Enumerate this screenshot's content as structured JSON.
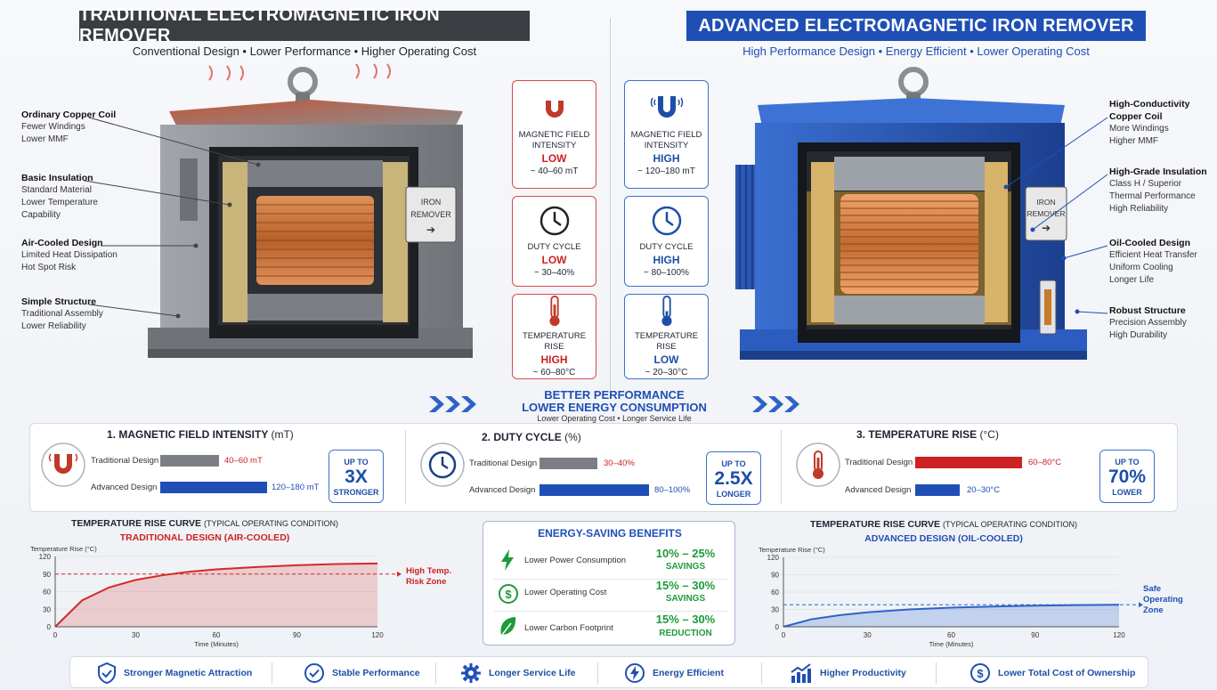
{
  "left": {
    "title": "TRADITIONAL ELECTROMAGNETIC IRON REMOVER",
    "subtitle": "Conventional Design • Lower Performance • Higher Operating Cost",
    "title_color": "#3a3d42",
    "callouts": [
      {
        "head": "Ordinary Copper Coil",
        "lines": [
          "Fewer Windings",
          "Lower MMF"
        ]
      },
      {
        "head": "Basic Insulation",
        "lines": [
          "Standard Material",
          "Lower Temperature",
          "Capability"
        ]
      },
      {
        "head": "Air-Cooled Design",
        "lines": [
          "Limited Heat Dissipation",
          "Hot Spot Risk"
        ]
      },
      {
        "head": "Simple Structure",
        "lines": [
          "Traditional Assembly",
          "Lower Reliability"
        ]
      }
    ],
    "plate": [
      "IRON",
      "REMOVER"
    ]
  },
  "right": {
    "title": "ADVANCED ELECTROMAGNETIC IRON REMOVER",
    "subtitle": "High Performance Design • Energy Efficient • Lower Operating Cost",
    "title_color": "#1f4fb5",
    "callouts": [
      {
        "head": "High-Conductivity Copper Coil",
        "lines": [
          "More Windings",
          "Higher MMF"
        ]
      },
      {
        "head": "High-Grade Insulation",
        "lines": [
          "Class H / Superior",
          "Thermal Performance",
          "High Reliability"
        ]
      },
      {
        "head": "Oil-Cooled Design",
        "lines": [
          "Efficient Heat Transfer",
          "Uniform Cooling",
          "Longer Life"
        ]
      },
      {
        "head": "Robust Structure",
        "lines": [
          "Precision Assembly",
          "High Durability"
        ]
      }
    ],
    "plate": [
      "IRON",
      "REMOVER"
    ]
  },
  "compare": {
    "traditional": [
      {
        "label": "MAGNETIC FIELD INTENSITY",
        "level": "LOW",
        "range": "~ 40–60 mT",
        "icon": "magnet-icon"
      },
      {
        "label": "DUTY CYCLE",
        "level": "LOW",
        "range": "~ 30–40%",
        "icon": "clock-icon"
      },
      {
        "label": "TEMPERATURE RISE",
        "level": "HIGH",
        "range": "~ 60–80°C",
        "icon": "thermometer-icon"
      }
    ],
    "advanced": [
      {
        "label": "MAGNETIC FIELD INTENSITY",
        "level": "HIGH",
        "range": "~ 120–180 mT",
        "icon": "magnet-icon"
      },
      {
        "label": "DUTY CYCLE",
        "level": "HIGH",
        "range": "~ 80–100%",
        "icon": "clock-icon"
      },
      {
        "label": "TEMPERATURE RISE",
        "level": "LOW",
        "range": "~ 20–30°C",
        "icon": "thermometer-icon"
      }
    ]
  },
  "banner": {
    "line1": "BETTER PERFORMANCE",
    "line2": "LOWER ENERGY CONSUMPTION",
    "line3": "Lower Operating Cost • Longer Service Life"
  },
  "metrics": [
    {
      "title": "1. MAGNETIC FIELD INTENSITY",
      "unit": "(mT)",
      "trad_label": "Traditional Design",
      "trad_value": "40–60 mT",
      "adv_label": "Advanced Design",
      "adv_value": "120–180 mT",
      "trad_frac": 0.33,
      "adv_frac": 1.0,
      "badge": [
        "UP TO",
        "3X",
        "STRONGER"
      ]
    },
    {
      "title": "2. DUTY CYCLE",
      "unit": "(%)",
      "trad_label": "Traditional Design",
      "trad_value": "30–40%",
      "adv_label": "Advanced Design",
      "adv_value": "80–100%",
      "trad_frac": 0.4,
      "adv_frac": 1.0,
      "badge": [
        "UP TO",
        "2.5X",
        "LONGER"
      ]
    },
    {
      "title": "3. TEMPERATURE RISE",
      "unit": "(°C)",
      "trad_label": "Traditional Design",
      "trad_value": "60–80°C",
      "adv_label": "Advanced Design",
      "adv_value": "20–30°C",
      "trad_frac": 1.0,
      "adv_frac": 0.4,
      "badge": [
        "UP TO",
        "70%",
        "LOWER"
      ]
    }
  ],
  "curves": {
    "left": {
      "title": "TEMPERATURE RISE CURVE",
      "title_note": "(TYPICAL OPERATING CONDITION)",
      "subtitle": "TRADITIONAL DESIGN (AIR-COOLED)",
      "annotation": [
        "High Temp.",
        "Risk Zone"
      ]
    },
    "right": {
      "title": "TEMPERATURE RISE CURVE",
      "title_note": "(TYPICAL OPERATING CONDITION)",
      "subtitle": "ADVANCED DESIGN (OIL-COOLED)",
      "annotation": [
        "Safe",
        "Operating",
        "Zone"
      ]
    }
  },
  "chart_data": [
    {
      "type": "area",
      "title": "TEMPERATURE RISE CURVE",
      "subtitle": "TRADITIONAL DESIGN (AIR-COOLED)",
      "xlabel": "Time (Minutes)",
      "ylabel": "Temperature Rise (°C)",
      "x_ticks": [
        0,
        30,
        60,
        90,
        120
      ],
      "y_ticks": [
        0,
        30,
        60,
        90,
        120
      ],
      "xlim": [
        0,
        120
      ],
      "ylim": [
        0,
        120
      ],
      "x": [
        0,
        10,
        20,
        30,
        40,
        50,
        60,
        75,
        90,
        105,
        120
      ],
      "values": [
        0,
        45,
        67,
        80,
        88,
        94,
        98,
        102,
        105,
        107,
        108
      ],
      "threshold": 90
    },
    {
      "type": "area",
      "title": "TEMPERATURE RISE CURVE",
      "subtitle": "ADVANCED DESIGN (OIL-COOLED)",
      "xlabel": "Time (Minutes)",
      "ylabel": "Temperature Rise (°C)",
      "x_ticks": [
        0,
        30,
        60,
        90,
        120
      ],
      "y_ticks": [
        0,
        30,
        60,
        90,
        120
      ],
      "xlim": [
        0,
        120
      ],
      "ylim": [
        0,
        120
      ],
      "x": [
        0,
        10,
        20,
        30,
        45,
        60,
        75,
        90,
        105,
        120
      ],
      "values": [
        0,
        13,
        20,
        25,
        30,
        33,
        35,
        36.5,
        37.5,
        38
      ],
      "threshold": 38
    }
  ],
  "energy": {
    "title": "ENERGY-SAVING BENEFITS",
    "rows": [
      {
        "label": "Lower Power Consumption",
        "value": "10% – 25%",
        "unit": "SAVINGS",
        "icon": "lightning-icon"
      },
      {
        "label": "Lower Operating Cost",
        "value": "15% – 30%",
        "unit": "SAVINGS",
        "icon": "dollar-icon"
      },
      {
        "label": "Lower Carbon Footprint",
        "value": "15% – 30%",
        "unit": "REDUCTION",
        "icon": "leaf-icon"
      }
    ]
  },
  "footer": [
    {
      "label": "Stronger Magnetic Attraction",
      "icon": "shield-check-icon"
    },
    {
      "label": "Stable Performance",
      "icon": "check-circle-icon"
    },
    {
      "label": "Longer Service Life",
      "icon": "gear-icon"
    },
    {
      "label": "Energy Efficient",
      "icon": "lightning-circle-icon"
    },
    {
      "label": "Higher Productivity",
      "icon": "growth-chart-icon"
    },
    {
      "label": "Lower Total Cost of Ownership",
      "icon": "dollar-circle-icon"
    }
  ]
}
